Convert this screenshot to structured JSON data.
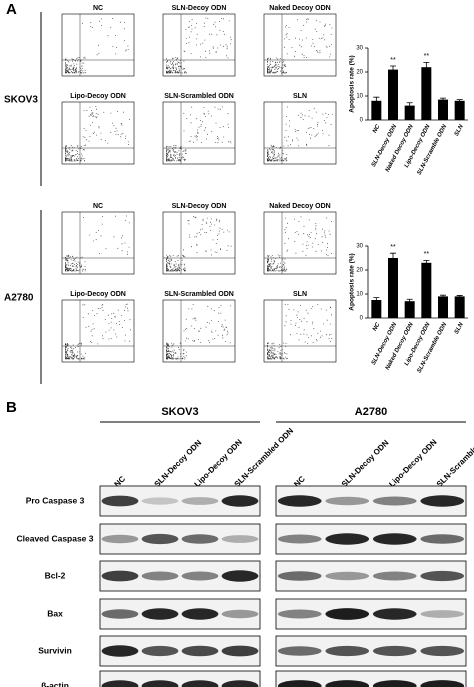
{
  "panel_a": {
    "label": "A",
    "groups": [
      {
        "cell_line": "SKOV3",
        "plots": [
          "NC",
          "SLN-Decoy ODN",
          "Naked Decoy ODN",
          "Lipo-Decoy ODN",
          "SLN-Scrambled ODN",
          "SLN"
        ],
        "chart": {
          "type": "bar",
          "y_label": "Apoptosis rate (%)",
          "categories": [
            "NC",
            "SLN-Decoy ODN",
            "Naked Decoy ODN",
            "Lipo-Decoy ODN",
            "SLN-Scramble ODN",
            "SLN"
          ],
          "values": [
            8,
            21,
            6,
            22,
            8.5,
            8
          ],
          "errors": [
            1.5,
            1.5,
            1.2,
            2,
            0.6,
            0.5
          ],
          "significance": [
            null,
            "**",
            null,
            "**",
            null,
            null
          ],
          "color": "#000000",
          "ylim": [
            0,
            30
          ],
          "yticks": [
            0,
            10,
            20,
            30
          ]
        }
      },
      {
        "cell_line": "A2780",
        "plots": [
          "NC",
          "SLN-Decoy ODN",
          "Naked  Decoy ODN",
          "Lipo-Decoy ODN",
          "SLN-Scrambled ODN",
          "SLN"
        ],
        "chart": {
          "type": "bar",
          "y_label": "Apoptosis rate (%)",
          "categories": [
            "NC",
            "SLN-Decoy ODN",
            "Naked Decoy ODN",
            "Lipo-Decoy ODN",
            "SLN-Scramble ODN",
            "SLN"
          ],
          "values": [
            7.5,
            25,
            7,
            23,
            9,
            9
          ],
          "errors": [
            1,
            2,
            0.8,
            1,
            0.5,
            0.4
          ],
          "significance": [
            null,
            "**",
            null,
            "**",
            null,
            null
          ],
          "color": "#000000",
          "ylim": [
            0,
            30
          ],
          "yticks": [
            0,
            10,
            20,
            30
          ]
        }
      }
    ]
  },
  "panel_b": {
    "label": "B",
    "cell_lines": [
      "SKOV3",
      "A2780"
    ],
    "lanes": [
      "NC",
      "SLN-Decoy ODN",
      "Lipo-Decoy ODN",
      "SLN-Scrambled ODN"
    ],
    "proteins": [
      "Pro Caspase 3",
      "Cleaved Caspase 3",
      "Bcl-2",
      "Bax",
      "Survivin",
      "β-actin"
    ]
  }
}
